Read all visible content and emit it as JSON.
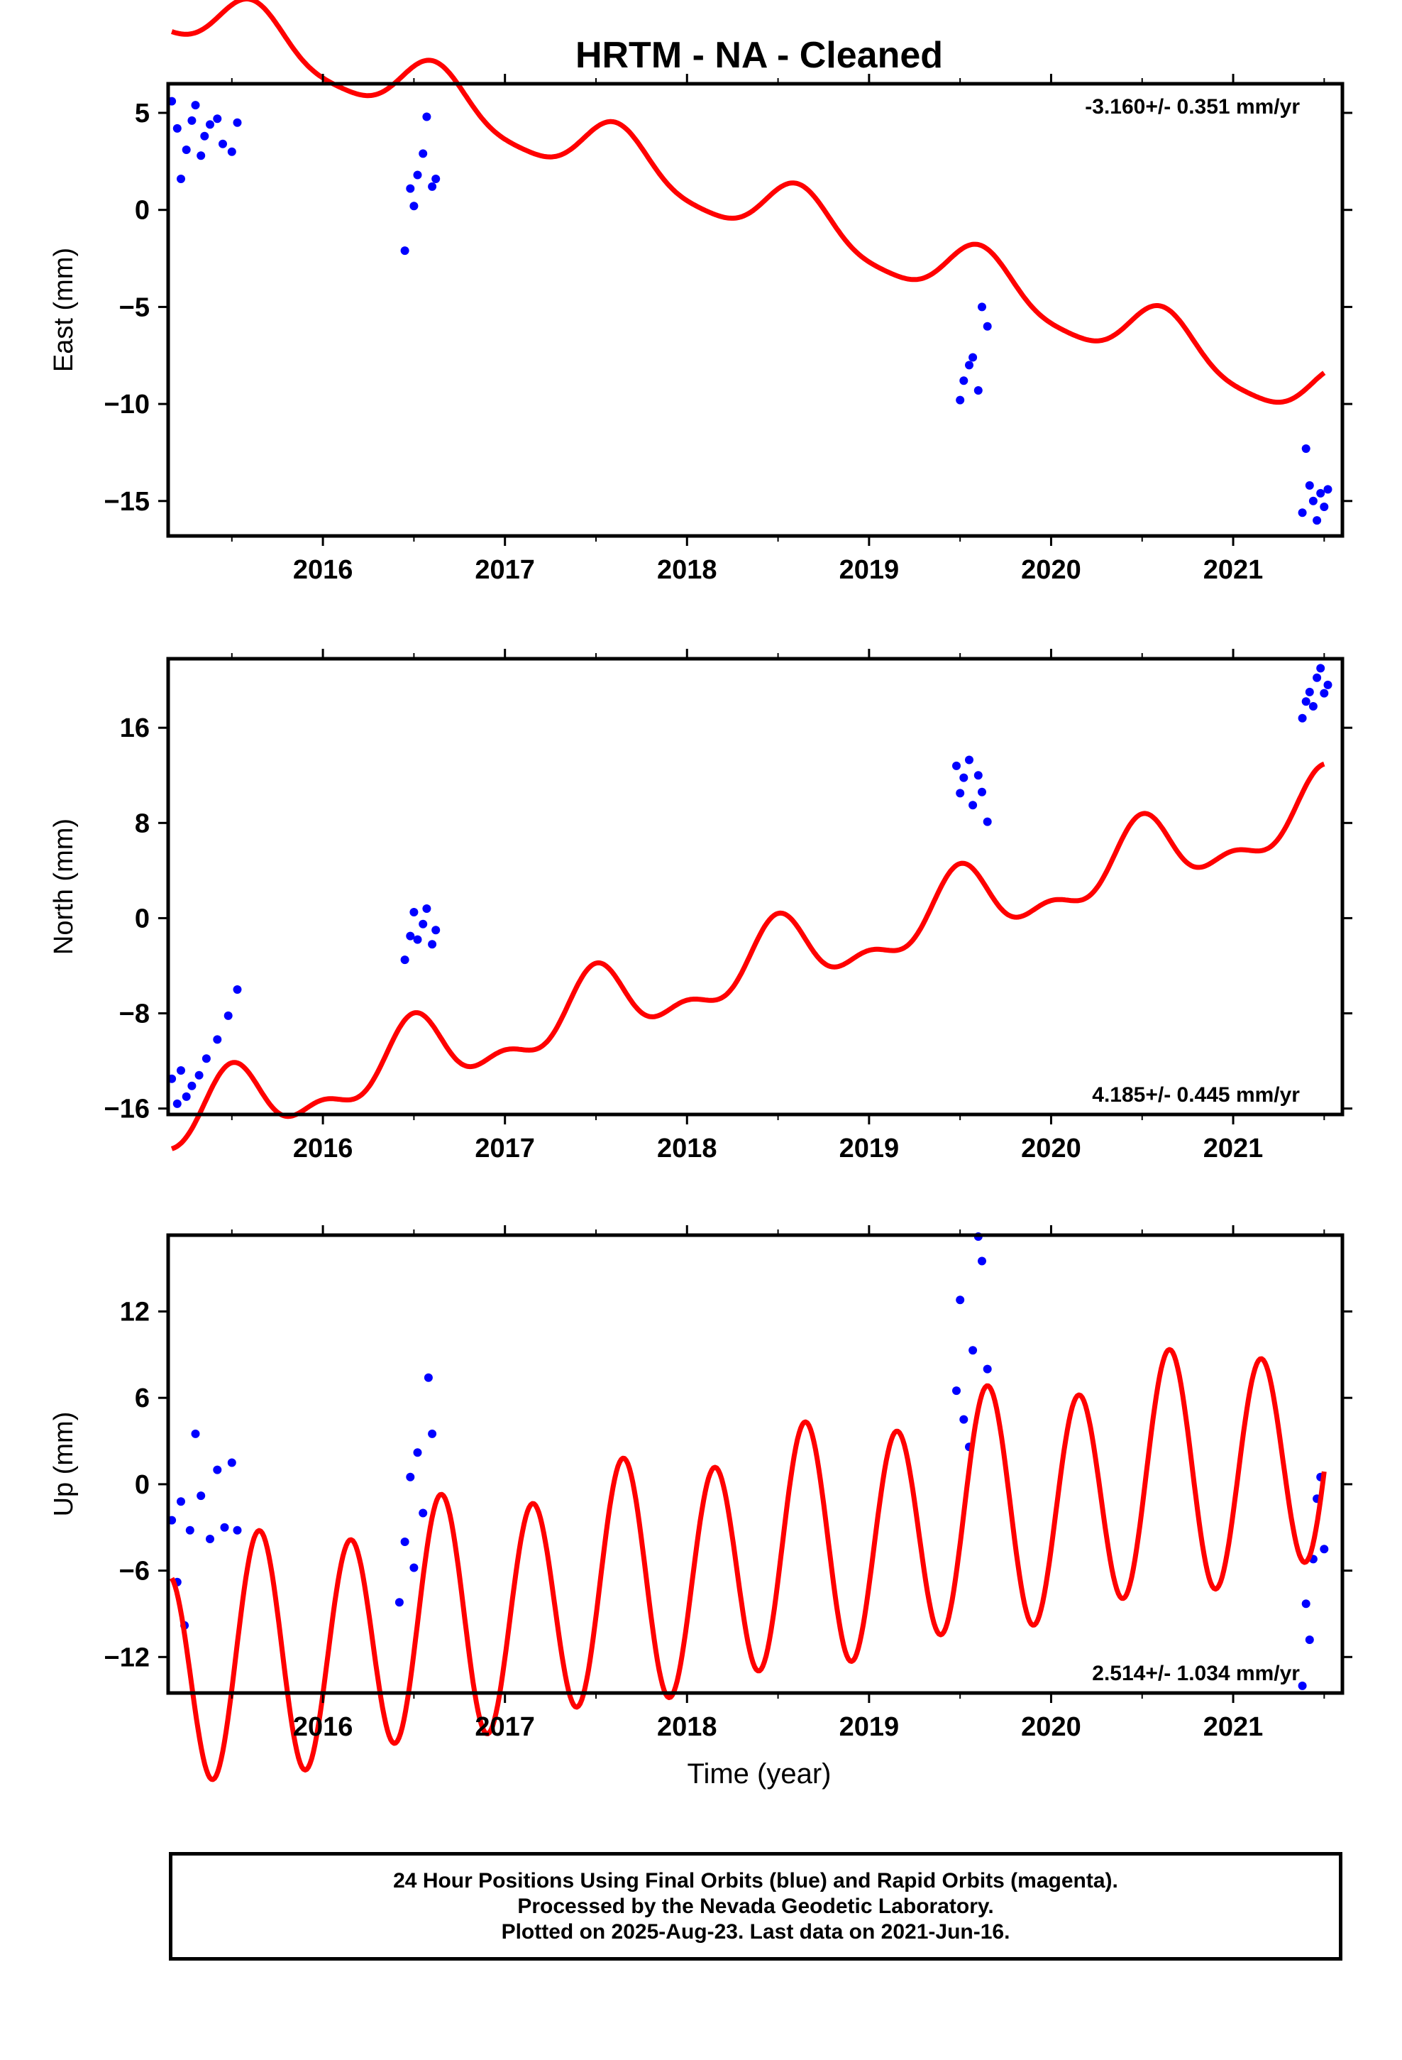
{
  "chart_data": {
    "type": "scatter",
    "title": "HRTM  - NA - Cleaned",
    "xlabel": "Time (year)",
    "xlim": [
      2015.15,
      2021.6
    ],
    "x_ticks": [
      "2016",
      "2017",
      "2018",
      "2019",
      "2020",
      "2021"
    ],
    "x_tick_values": [
      2016,
      2017,
      2018,
      2019,
      2020,
      2021
    ],
    "panels": [
      {
        "id": "east",
        "ylabel": "East (mm)",
        "ylim": [
          -16.8,
          6.5
        ],
        "y_ticks": [
          "5",
          "0",
          "−5",
          "−10",
          "−15"
        ],
        "y_tick_values": [
          5,
          0,
          -5,
          -10,
          -15
        ],
        "rate_label": "-3.160+/- 0.351 mm/yr",
        "rate_position": "top-right",
        "model": {
          "rate": -3.16,
          "offset": -0.1,
          "annual_amp": 1.5,
          "annual_peak": 0.62,
          "semiannual_amp": 0.3,
          "semiannual_peak": 0.1
        },
        "series": [
          {
            "x": [
              2015.17,
              2015.2,
              2015.22,
              2015.25,
              2015.28,
              2015.3,
              2015.33,
              2015.35,
              2015.38,
              2015.42,
              2015.45,
              2015.5,
              2015.53
            ],
            "y": [
              5.6,
              4.2,
              1.6,
              3.1,
              4.6,
              5.4,
              2.8,
              3.8,
              4.4,
              4.7,
              3.4,
              3.0,
              4.5
            ]
          },
          {
            "x": [
              2016.45,
              2016.48,
              2016.5,
              2016.52,
              2016.55,
              2016.57,
              2016.6,
              2016.62
            ],
            "y": [
              -2.1,
              1.1,
              0.2,
              1.8,
              2.9,
              4.8,
              1.2,
              1.6
            ]
          },
          {
            "x": [
              2019.5,
              2019.52,
              2019.55,
              2019.57,
              2019.6,
              2019.62,
              2019.65
            ],
            "y": [
              -9.8,
              -8.8,
              -8.0,
              -7.6,
              -9.3,
              -5.0,
              -6.0
            ]
          },
          {
            "x": [
              2021.38,
              2021.4,
              2021.42,
              2021.44,
              2021.46,
              2021.48,
              2021.5,
              2021.52
            ],
            "y": [
              -15.6,
              -12.3,
              -14.2,
              -15.0,
              -16.0,
              -14.6,
              -15.3,
              -14.4
            ]
          }
        ]
      },
      {
        "id": "north",
        "ylabel": "North (mm)",
        "ylim": [
          -16.5,
          21.8
        ],
        "y_ticks": [
          "16",
          "8",
          "0",
          "−8",
          "−16"
        ],
        "y_tick_values": [
          16,
          8,
          0,
          -8,
          -16
        ],
        "rate_label": "4.185+/- 0.445 mm/yr",
        "rate_position": "bottom-right",
        "model": {
          "rate": 4.185,
          "offset": -3.5,
          "annual_amp": 2.6,
          "annual_peak": 0.5,
          "semiannual_amp": 1.3,
          "semiannual_peak": 0.0
        },
        "series": [
          {
            "x": [
              2015.17,
              2015.2,
              2015.22,
              2015.25,
              2015.28,
              2015.32,
              2015.36,
              2015.42,
              2015.48,
              2015.53
            ],
            "y": [
              -13.5,
              -15.6,
              -12.8,
              -15.0,
              -14.1,
              -13.2,
              -11.8,
              -10.2,
              -8.2,
              -6.0
            ]
          },
          {
            "x": [
              2016.45,
              2016.48,
              2016.5,
              2016.52,
              2016.55,
              2016.57,
              2016.6,
              2016.62
            ],
            "y": [
              -3.5,
              -1.5,
              0.5,
              -1.8,
              -0.5,
              0.8,
              -2.2,
              -1.0
            ]
          },
          {
            "x": [
              2019.48,
              2019.5,
              2019.52,
              2019.55,
              2019.57,
              2019.6,
              2019.62,
              2019.65
            ],
            "y": [
              12.8,
              10.5,
              11.8,
              13.3,
              9.5,
              12.0,
              10.6,
              8.1
            ]
          },
          {
            "x": [
              2021.38,
              2021.4,
              2021.42,
              2021.44,
              2021.46,
              2021.48,
              2021.5,
              2021.52
            ],
            "y": [
              16.8,
              18.2,
              19.0,
              17.8,
              20.2,
              21.0,
              18.9,
              19.6
            ]
          }
        ]
      },
      {
        "id": "up",
        "ylabel": "Up (mm)",
        "ylim": [
          -14.5,
          17.3
        ],
        "y_ticks": [
          "12",
          "6",
          "0",
          "−6",
          "−12"
        ],
        "y_tick_values": [
          12,
          6,
          0,
          -6,
          -12
        ],
        "rate_label": "2.514+/- 1.034 mm/yr",
        "rate_position": "bottom-right",
        "model": {
          "rate": 2.514,
          "offset": -5.0,
          "annual_amp": 1.0,
          "annual_peak": 0.6,
          "semiannual_amp": 8.0,
          "semiannual_peak": 0.15
        },
        "series": [
          {
            "x": [
              2015.17,
              2015.2,
              2015.22,
              2015.24,
              2015.27,
              2015.3,
              2015.33,
              2015.38,
              2015.42,
              2015.46,
              2015.5,
              2015.53
            ],
            "y": [
              -2.5,
              -6.8,
              -1.2,
              -9.8,
              -3.2,
              3.5,
              -0.8,
              -3.8,
              1.0,
              -3.0,
              1.5,
              -3.2
            ]
          },
          {
            "x": [
              2016.42,
              2016.45,
              2016.48,
              2016.5,
              2016.52,
              2016.55,
              2016.58,
              2016.6
            ],
            "y": [
              -8.2,
              -4.0,
              0.5,
              -5.8,
              2.2,
              -2.0,
              7.4,
              3.5
            ]
          },
          {
            "x": [
              2019.48,
              2019.5,
              2019.52,
              2019.55,
              2019.57,
              2019.6,
              2019.62,
              2019.65
            ],
            "y": [
              6.5,
              12.8,
              4.5,
              2.6,
              9.3,
              17.2,
              15.5,
              8.0
            ]
          },
          {
            "x": [
              2021.38,
              2021.4,
              2021.42,
              2021.44,
              2021.46,
              2021.48,
              2021.5
            ],
            "y": [
              -14.0,
              -8.3,
              -10.8,
              -5.2,
              -1.0,
              0.5,
              -4.5
            ]
          }
        ]
      }
    ]
  },
  "footer": {
    "line1": "24 Hour Positions Using Final Orbits (blue) and Rapid Orbits (magenta).",
    "line2": "Processed by the Nevada Geodetic Laboratory.",
    "line3": "Plotted on 2025-Aug-23. Last data on 2021-Jun-16."
  },
  "colors": {
    "points": "#0000ff",
    "model": "#ff0000",
    "frame": "#000000"
  }
}
